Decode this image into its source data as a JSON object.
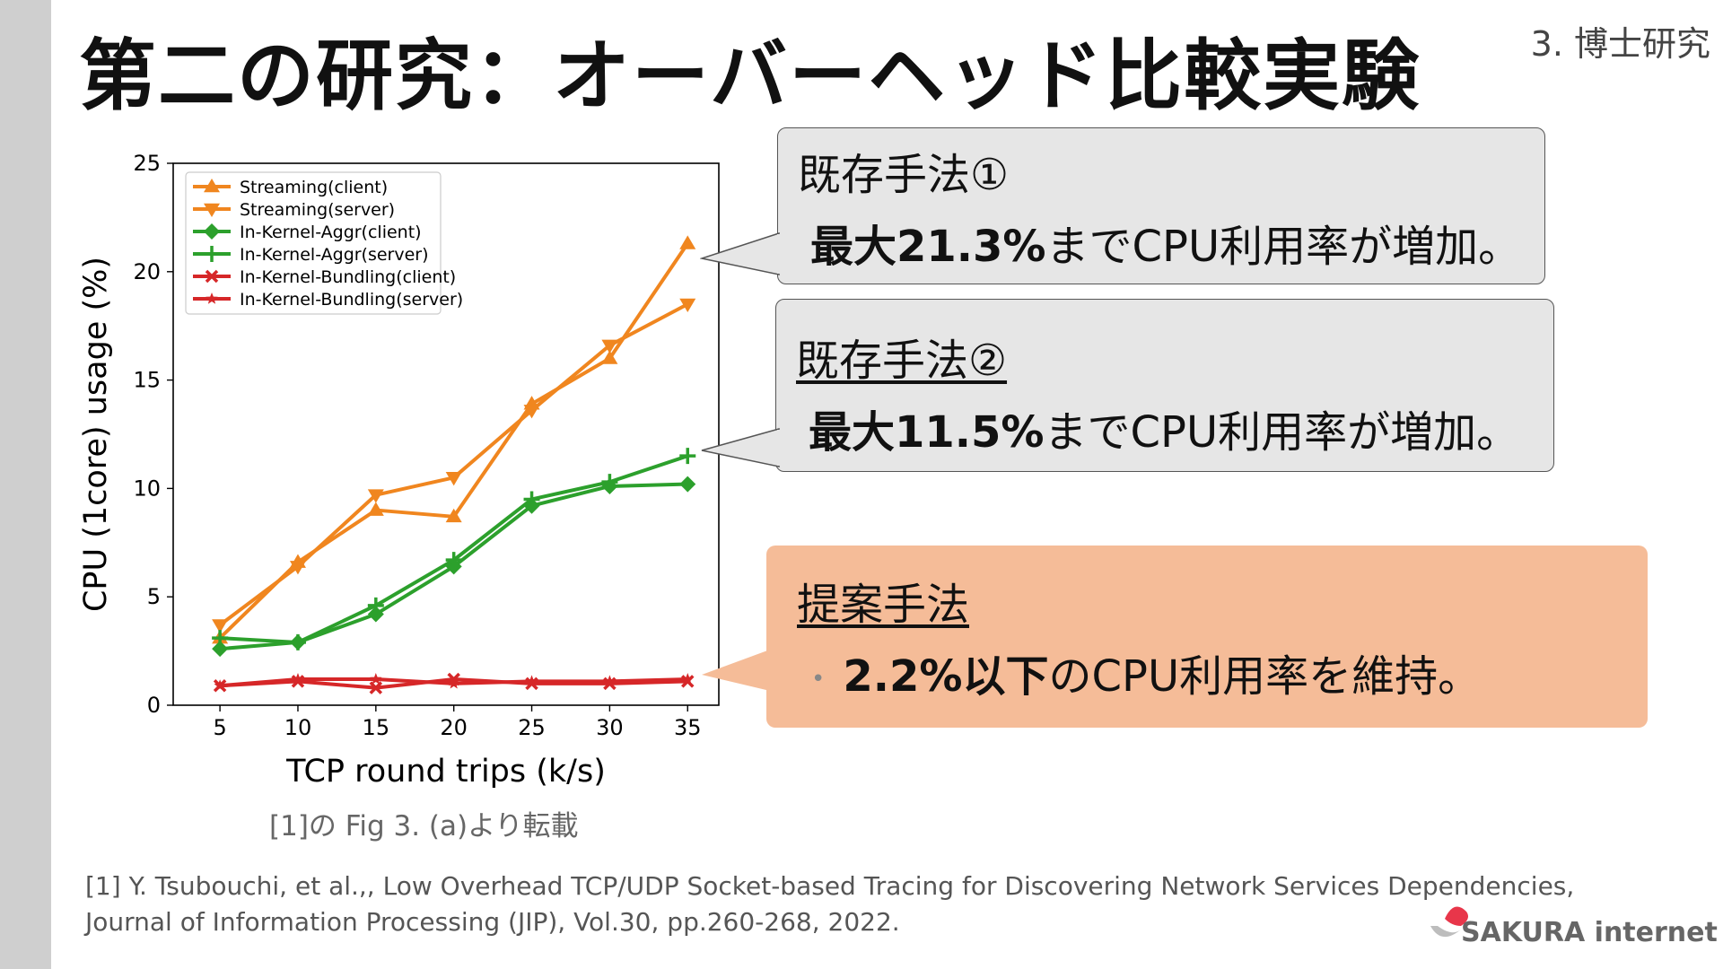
{
  "slide": {
    "title": "第二の研究：オーバーヘッド比較実験",
    "section": "3. 博士研究"
  },
  "callouts": {
    "c1": {
      "heading": "既存手法①",
      "body_bold": "最大21.3%",
      "body_rest": "までCPU利用率が増加。"
    },
    "c2": {
      "heading": "既存手法②",
      "body_bold": "最大11.5%",
      "body_rest": "までCPU利用率が増加。"
    },
    "c3": {
      "heading": "提案手法",
      "bullet": "•",
      "body_bold": "2.2%以下",
      "body_rest": "のCPU利用率を維持。"
    }
  },
  "caption": "[1]の Fig 3. (a)より転載",
  "reference": {
    "line1": "[1] Y. Tsubouchi, et al.,, Low Overhead TCP/UDP Socket-based Tracing for Discovering Network Services Dependencies,",
    "line2": "Journal of Information Processing (JIP), Vol.30, pp.260-268, 2022."
  },
  "logo": {
    "text": "SAKURA internet"
  },
  "colors": {
    "orange": "#f0861f",
    "green": "#2ca02c",
    "red": "#d62728",
    "callout_gray": "#e6e6e6",
    "callout_orange": "#f5bc98"
  },
  "chart_data": {
    "type": "line",
    "xlabel": "TCP round trips (k/s)",
    "ylabel": "CPU (1core) usage (%)",
    "x": [
      5,
      10,
      15,
      20,
      25,
      30,
      35
    ],
    "xlim": [
      2,
      37
    ],
    "ylim": [
      0,
      25
    ],
    "xticks": [
      5,
      10,
      15,
      20,
      25,
      30,
      35
    ],
    "yticks": [
      0,
      5,
      10,
      15,
      20,
      25
    ],
    "legend_position": "top-left",
    "series": [
      {
        "name": "Streaming(client)",
        "color": "#f0861f",
        "marker": "tri-up",
        "values": [
          3.1,
          6.6,
          9.0,
          8.7,
          13.9,
          16.0,
          21.3
        ]
      },
      {
        "name": "Streaming(server)",
        "color": "#f0861f",
        "marker": "tri-down",
        "values": [
          3.7,
          6.4,
          9.7,
          10.5,
          13.6,
          16.6,
          18.5
        ]
      },
      {
        "name": "In-Kernel-Aggr(client)",
        "color": "#2ca02c",
        "marker": "diamond",
        "values": [
          2.6,
          2.9,
          4.2,
          6.4,
          9.2,
          10.1,
          10.2
        ]
      },
      {
        "name": "In-Kernel-Aggr(server)",
        "color": "#2ca02c",
        "marker": "plus",
        "values": [
          3.1,
          2.9,
          4.6,
          6.7,
          9.5,
          10.3,
          11.5
        ]
      },
      {
        "name": "In-Kernel-Bundling(client)",
        "color": "#d62728",
        "marker": "x",
        "values": [
          0.9,
          1.1,
          0.8,
          1.2,
          1.0,
          1.0,
          1.1
        ]
      },
      {
        "name": "In-Kernel-Bundling(server)",
        "color": "#d62728",
        "marker": "star",
        "values": [
          0.9,
          1.2,
          1.2,
          1.0,
          1.1,
          1.1,
          1.2
        ]
      }
    ]
  }
}
